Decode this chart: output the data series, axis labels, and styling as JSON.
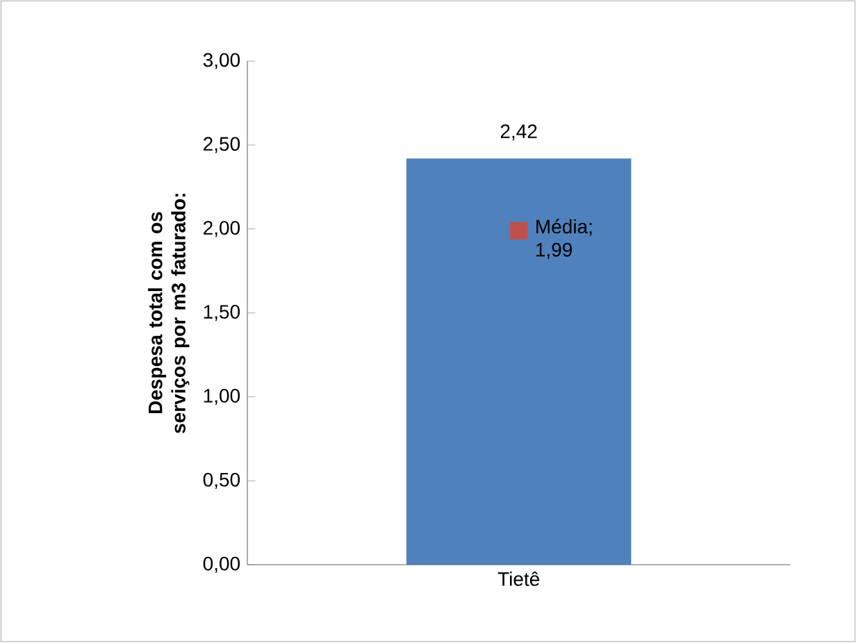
{
  "chart_data": {
    "type": "bar",
    "ylabel": "Despesa total com os serviços por m3 faturado:",
    "categories": [
      "Tietê"
    ],
    "series": [
      {
        "color": "#4f81bd",
        "values": [
          2.42
        ],
        "value_labels": [
          "2,42"
        ]
      },
      {
        "type": "scatter",
        "color": "#c0504d",
        "x": [
          "Tietê"
        ],
        "values": [
          1.99
        ],
        "value_labels": [
          "Média; 1,99"
        ]
      }
    ],
    "ylim": [
      0,
      3
    ],
    "yticks": [
      {
        "value": 0,
        "label": "0,00"
      },
      {
        "value": 0.5,
        "label": "0,50"
      },
      {
        "value": 1,
        "label": "1,00"
      },
      {
        "value": 1.5,
        "label": "1,50"
      },
      {
        "value": 2,
        "label": "2,00"
      },
      {
        "value": 2.5,
        "label": "2,50"
      },
      {
        "value": 3,
        "label": "3,00"
      }
    ],
    "marker": "square"
  }
}
